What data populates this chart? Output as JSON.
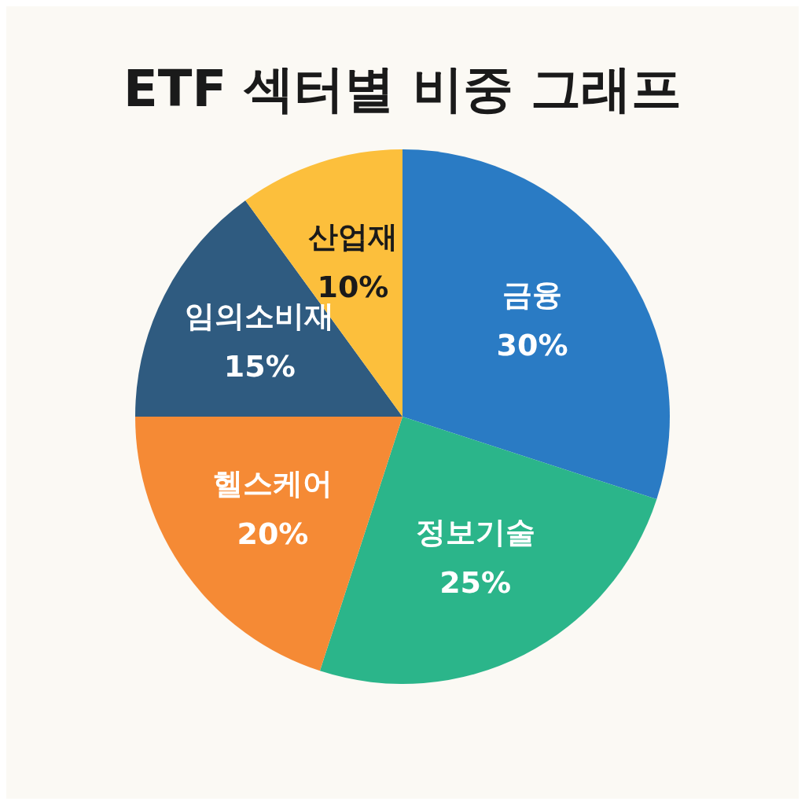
{
  "chart_data": {
    "type": "pie",
    "title": "ETF 섹터별 비중 그래프",
    "categories": [
      "금융",
      "정보기술",
      "헬스케어",
      "임의소비재",
      "산업재"
    ],
    "values": [
      30,
      25,
      20,
      15,
      10
    ],
    "value_labels": [
      "30%",
      "25%",
      "20%",
      "15%",
      "10%"
    ],
    "colors": [
      "#2a7bc4",
      "#2bb58a",
      "#f58a35",
      "#2f5b80",
      "#fcbf3c"
    ],
    "legend": false
  }
}
